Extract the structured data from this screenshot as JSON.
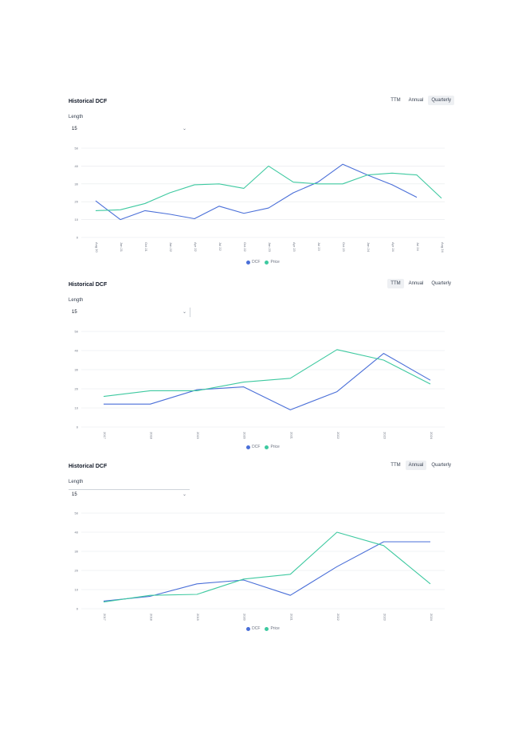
{
  "colors": {
    "blue": "#4a6fd8",
    "green": "#3ec9a0",
    "grid": "#e6e8eb",
    "text": "#6b7280"
  },
  "panels": [
    {
      "title": "Historical DCF",
      "tabs": [
        {
          "label": "TTM",
          "active": false
        },
        {
          "label": "Annual",
          "active": false
        },
        {
          "label": "Quarterly",
          "active": true
        }
      ],
      "length_label": "Length",
      "length_value": "15",
      "legend": [
        {
          "name": "DCF",
          "color": "#4a6fd8"
        },
        {
          "name": "Price",
          "color": "#3ec9a0"
        }
      ]
    },
    {
      "title": "Historical DCF",
      "tabs": [
        {
          "label": "TTM",
          "active": true
        },
        {
          "label": "Annual",
          "active": false
        },
        {
          "label": "Quarterly",
          "active": false
        }
      ],
      "length_label": "Length",
      "length_value": "15",
      "legend": [
        {
          "name": "DCF",
          "color": "#4a6fd8"
        },
        {
          "name": "Price",
          "color": "#3ec9a0"
        }
      ]
    },
    {
      "title": "Historical DCF",
      "tabs": [
        {
          "label": "TTM",
          "active": false
        },
        {
          "label": "Annual",
          "active": true
        },
        {
          "label": "Quarterly",
          "active": false
        }
      ],
      "length_label": "Length",
      "length_value": "15",
      "legend": [
        {
          "name": "DCF",
          "color": "#4a6fd8"
        },
        {
          "name": "Price",
          "color": "#3ec9a0"
        }
      ]
    }
  ],
  "chart_data": [
    {
      "type": "line",
      "ylim": [
        0,
        50
      ],
      "yticks": [
        "0",
        "10",
        "20",
        "30",
        "40",
        "50"
      ],
      "x": [
        "Aug 20",
        "Jan 21",
        "Oct 21",
        "Jan 22",
        "Apr 22",
        "Jul 22",
        "Oct 22",
        "Jan 23",
        "Apr 23",
        "Jul 23",
        "Oct 23",
        "Jan 24",
        "Apr 24",
        "Jul 24",
        "Aug 24"
      ],
      "series": [
        {
          "name": "DCF",
          "color": "#4a6fd8",
          "values": [
            20.5,
            10,
            15,
            13,
            10.5,
            17.5,
            13.5,
            16.5,
            25,
            31,
            41,
            35,
            29.5,
            22.5,
            null
          ]
        },
        {
          "name": "Price",
          "color": "#3ec9a0",
          "values": [
            15,
            15.5,
            19,
            25,
            29.5,
            30,
            27.5,
            40,
            31,
            30,
            30,
            35,
            36,
            35,
            22
          ]
        }
      ],
      "grid": true
    },
    {
      "type": "line",
      "ylim": [
        0,
        50
      ],
      "yticks": [
        "0",
        "10",
        "20",
        "30",
        "40",
        "50"
      ],
      "x": [
        "2017",
        "2018",
        "2019",
        "2020",
        "2021",
        "2022",
        "2023",
        "2024"
      ],
      "series": [
        {
          "name": "DCF",
          "color": "#4a6fd8",
          "values": [
            12,
            12,
            19.5,
            21,
            9,
            18.5,
            38.5,
            24.5
          ]
        },
        {
          "name": "Price",
          "color": "#3ec9a0",
          "values": [
            16,
            19,
            19,
            23.5,
            25.5,
            40.5,
            35,
            22.5
          ]
        }
      ],
      "grid": true
    },
    {
      "type": "line",
      "ylim": [
        0,
        50
      ],
      "yticks": [
        "0",
        "10",
        "20",
        "30",
        "40",
        "50"
      ],
      "x": [
        "2017",
        "2018",
        "2019",
        "2020",
        "2021",
        "2022",
        "2023",
        "2024"
      ],
      "series": [
        {
          "name": "DCF",
          "color": "#4a6fd8",
          "values": [
            4,
            6.5,
            13,
            15,
            7,
            22,
            35,
            35
          ]
        },
        {
          "name": "Price",
          "color": "#3ec9a0",
          "values": [
            3.5,
            7,
            7.5,
            15.5,
            18,
            40,
            33,
            13
          ]
        }
      ],
      "grid": true
    }
  ]
}
